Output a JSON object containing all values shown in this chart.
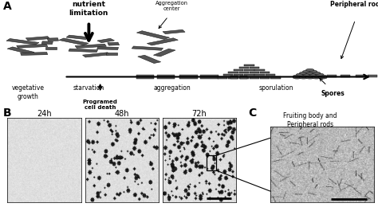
{
  "bg_color": "#ffffff",
  "fig_width": 4.74,
  "fig_height": 2.65,
  "dpi": 100,
  "panel_A_label": "A",
  "panel_B_label": "B",
  "panel_C_label": "C",
  "veg_growth_label": "vegetative\ngrowth",
  "nutrient_label": "nutrient\nlimitation",
  "starvation_label": "starvation",
  "programmed_label": "Programed\ncell death",
  "aggregation_center_label": "Aggregation\ncenter",
  "aggregation_label": "aggregation",
  "sporulation_label": "sporulation",
  "peripheral_rods_label": "Peripheral rods",
  "spores_label": "Spores",
  "fruiting_label": "Fruiting body and\nPeripheral rods",
  "time_labels": [
    "24h",
    "48h",
    "72h"
  ],
  "dark_gray": "#3a3a3a",
  "rod_color": "#555555",
  "block_color": "#5a5a5a",
  "spore_color": "#606060"
}
